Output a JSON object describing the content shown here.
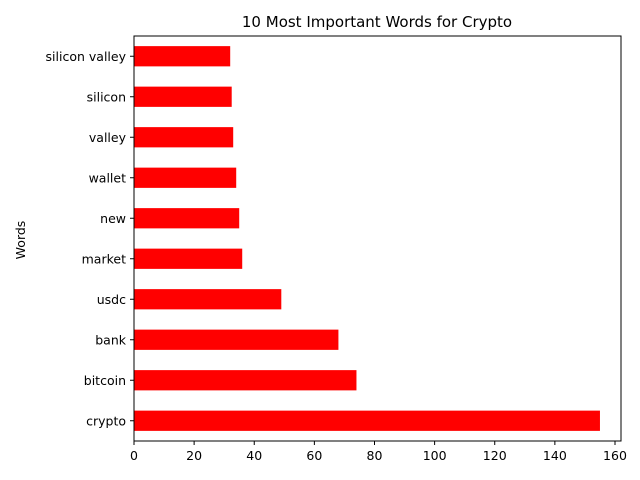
{
  "chart_data": {
    "type": "bar",
    "orientation": "horizontal",
    "title": "10 Most Important Words for Crypto",
    "xlabel": "",
    "ylabel": "Words",
    "categories": [
      "crypto",
      "bitcoin",
      "bank",
      "usdc",
      "market",
      "new",
      "wallet",
      "valley",
      "silicon",
      "silicon valley"
    ],
    "values": [
      155,
      74,
      68,
      49,
      36,
      35,
      34,
      33,
      32.5,
      32
    ],
    "xlim": [
      0,
      162
    ],
    "xticks": [
      0,
      20,
      40,
      60,
      80,
      100,
      120,
      140,
      160
    ],
    "bar_color": "#ff0000",
    "grid": false,
    "legend": "none"
  }
}
